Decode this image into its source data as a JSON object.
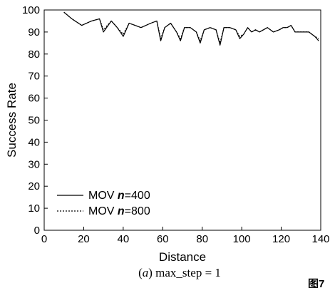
{
  "chart_data": {
    "type": "line",
    "title": "",
    "xlabel": "Distance",
    "ylabel": "Success Rate",
    "xlim": [
      0,
      140
    ],
    "ylim": [
      0,
      100
    ],
    "xticks": [
      0,
      20,
      40,
      60,
      80,
      100,
      120,
      140
    ],
    "yticks": [
      0,
      10,
      20,
      30,
      40,
      50,
      60,
      70,
      80,
      90,
      100
    ],
    "grid": false,
    "legend_position": "bottom-left",
    "caption": {
      "prefix": "(",
      "letter": "a",
      "suffix": ") max_step = 1"
    },
    "corner_text": "图7",
    "series": [
      {
        "name": "MOV n=400",
        "label_prefix": "MOV ",
        "label_var": "n",
        "label_suffix": "=400",
        "style": "solid",
        "color": "#000000",
        "x": [
          10,
          14,
          19,
          24,
          28,
          30,
          34,
          37,
          40,
          43,
          46,
          49,
          54,
          57,
          59,
          61,
          64,
          67,
          69,
          71,
          74,
          77,
          79,
          81,
          84,
          87,
          89,
          91,
          94,
          97,
          99,
          101,
          103,
          105,
          107,
          109,
          111,
          113,
          116,
          119,
          121,
          123,
          125,
          127,
          129,
          131,
          134,
          137,
          139
        ],
        "y": [
          99,
          96,
          93,
          95,
          96,
          90,
          95,
          92,
          88,
          94,
          93,
          92,
          94,
          95,
          86,
          92,
          94,
          90,
          86,
          92,
          92,
          90,
          85,
          91,
          92,
          91,
          84,
          92,
          92,
          91,
          87,
          89,
          92,
          90,
          91,
          90,
          91,
          92,
          90,
          91,
          92,
          92,
          93,
          90,
          90,
          90,
          90,
          88,
          86
        ]
      },
      {
        "name": "MOV n=800",
        "label_prefix": "MOV ",
        "label_var": "n",
        "label_suffix": "=800",
        "style": "dotted",
        "color": "#000000",
        "x": [
          10,
          14,
          19,
          24,
          28,
          30,
          34,
          37,
          40,
          43,
          46,
          49,
          54,
          57,
          59,
          61,
          64,
          67,
          69,
          71,
          74,
          77,
          79,
          81,
          84,
          87,
          89,
          91,
          94,
          97,
          99,
          101,
          103,
          105,
          107,
          109,
          111,
          113,
          116,
          119,
          121,
          123,
          125,
          127,
          129,
          131,
          134,
          137,
          139
        ],
        "y": [
          99,
          96,
          93,
          95,
          96,
          91,
          95,
          92,
          89,
          94,
          93,
          92,
          94,
          95,
          87,
          92,
          94,
          90,
          87,
          92,
          92,
          90,
          86,
          91,
          92,
          91,
          85,
          92,
          92,
          91,
          88,
          89,
          92,
          90,
          91,
          90,
          91,
          92,
          90,
          91,
          92,
          92,
          93,
          90,
          90,
          90,
          90,
          88,
          87
        ]
      }
    ]
  }
}
